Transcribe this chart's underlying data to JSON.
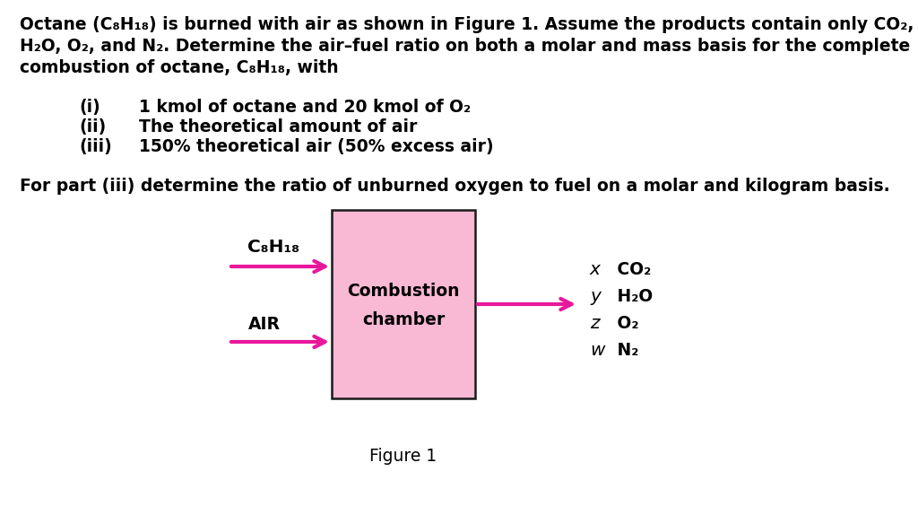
{
  "background_color": "#ffffff",
  "text_color": "#000000",
  "arrow_color": "#e8189c",
  "box_fill_color": "#f9b8d4",
  "box_edge_color": "#1a1a1a",
  "fig_width": 10.24,
  "fig_height": 5.74,
  "dpi": 100,
  "main_fontsize": 13.5,
  "small_fontsize": 12.5,
  "paragraph1_lines": [
    "Octane (C₈H₁₈) is burned with air as shown in Figure 1. Assume the products contain only CO₂,",
    "H₂O, O₂, and N₂. Determine the air–fuel ratio on both a molar and mass basis for the complete",
    "combustion of octane, C₈H₁₈, with"
  ],
  "list_items": [
    [
      "(i)",
      "1 kmol of octane and 20 kmol of O₂"
    ],
    [
      "(ii)",
      "The theoretical amount of air"
    ],
    [
      "(iii)",
      "150% theoretical air (50% excess air)"
    ]
  ],
  "paragraph2": "For part (iii) determine the ratio of unburned oxygen to fuel on a molar and kilogram basis.",
  "figure_label": "Figure 1",
  "box_label_line1": "Combustion",
  "box_label_line2": "chamber",
  "inlet_top_label": "C₈H₁₈",
  "inlet_bottom_label": "AIR",
  "outlet_labels_italic": [
    "x",
    "y",
    "z",
    "w"
  ],
  "outlet_labels_chem": [
    " CO₂",
    " H₂O",
    " O₂",
    " N₂"
  ]
}
